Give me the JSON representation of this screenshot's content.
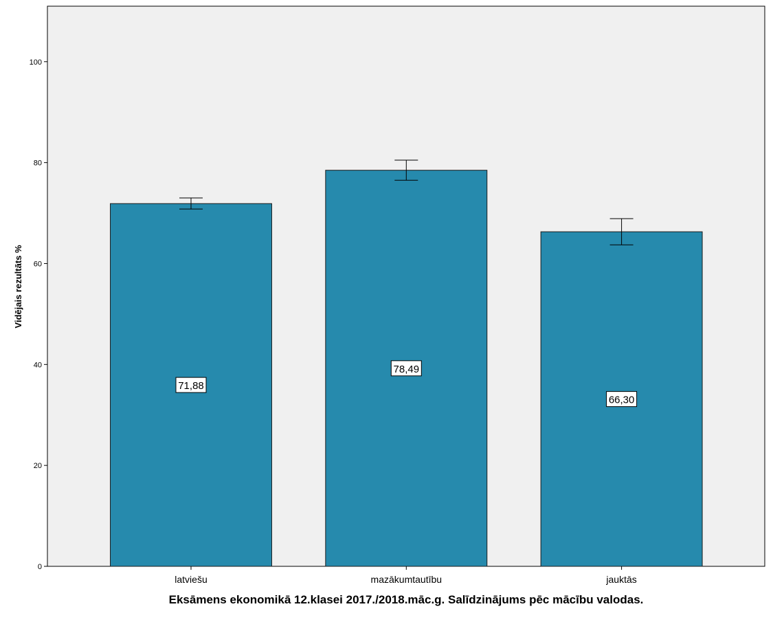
{
  "chart_data": {
    "type": "bar",
    "categories": [
      "latviešu",
      "mazākumtautību",
      "jauktās"
    ],
    "values": [
      71.88,
      78.49,
      66.3
    ],
    "value_labels": [
      "71,88",
      "78,49",
      "66,30"
    ],
    "error_bars": [
      {
        "low": 70.8,
        "high": 73.0
      },
      {
        "low": 76.5,
        "high": 80.5
      },
      {
        "low": 63.7,
        "high": 68.9
      }
    ],
    "title": "",
    "xlabel": "Eksāmens ekonomikā 12.klasei 2017./2018.māc.g. Salīdzinājums pēc mācību valodas.",
    "ylabel": "Vidējais rezultāts %",
    "ylim": [
      0,
      111
    ],
    "yticks": [
      0,
      20,
      40,
      60,
      80,
      100
    ],
    "grid": false,
    "legend": "none",
    "colors": {
      "bar_fill": "#268aad",
      "bar_stroke": "#1b1b1b",
      "plot_background": "#f0f0f0",
      "axis": "#000000",
      "label_box_fill": "#ffffff"
    }
  }
}
